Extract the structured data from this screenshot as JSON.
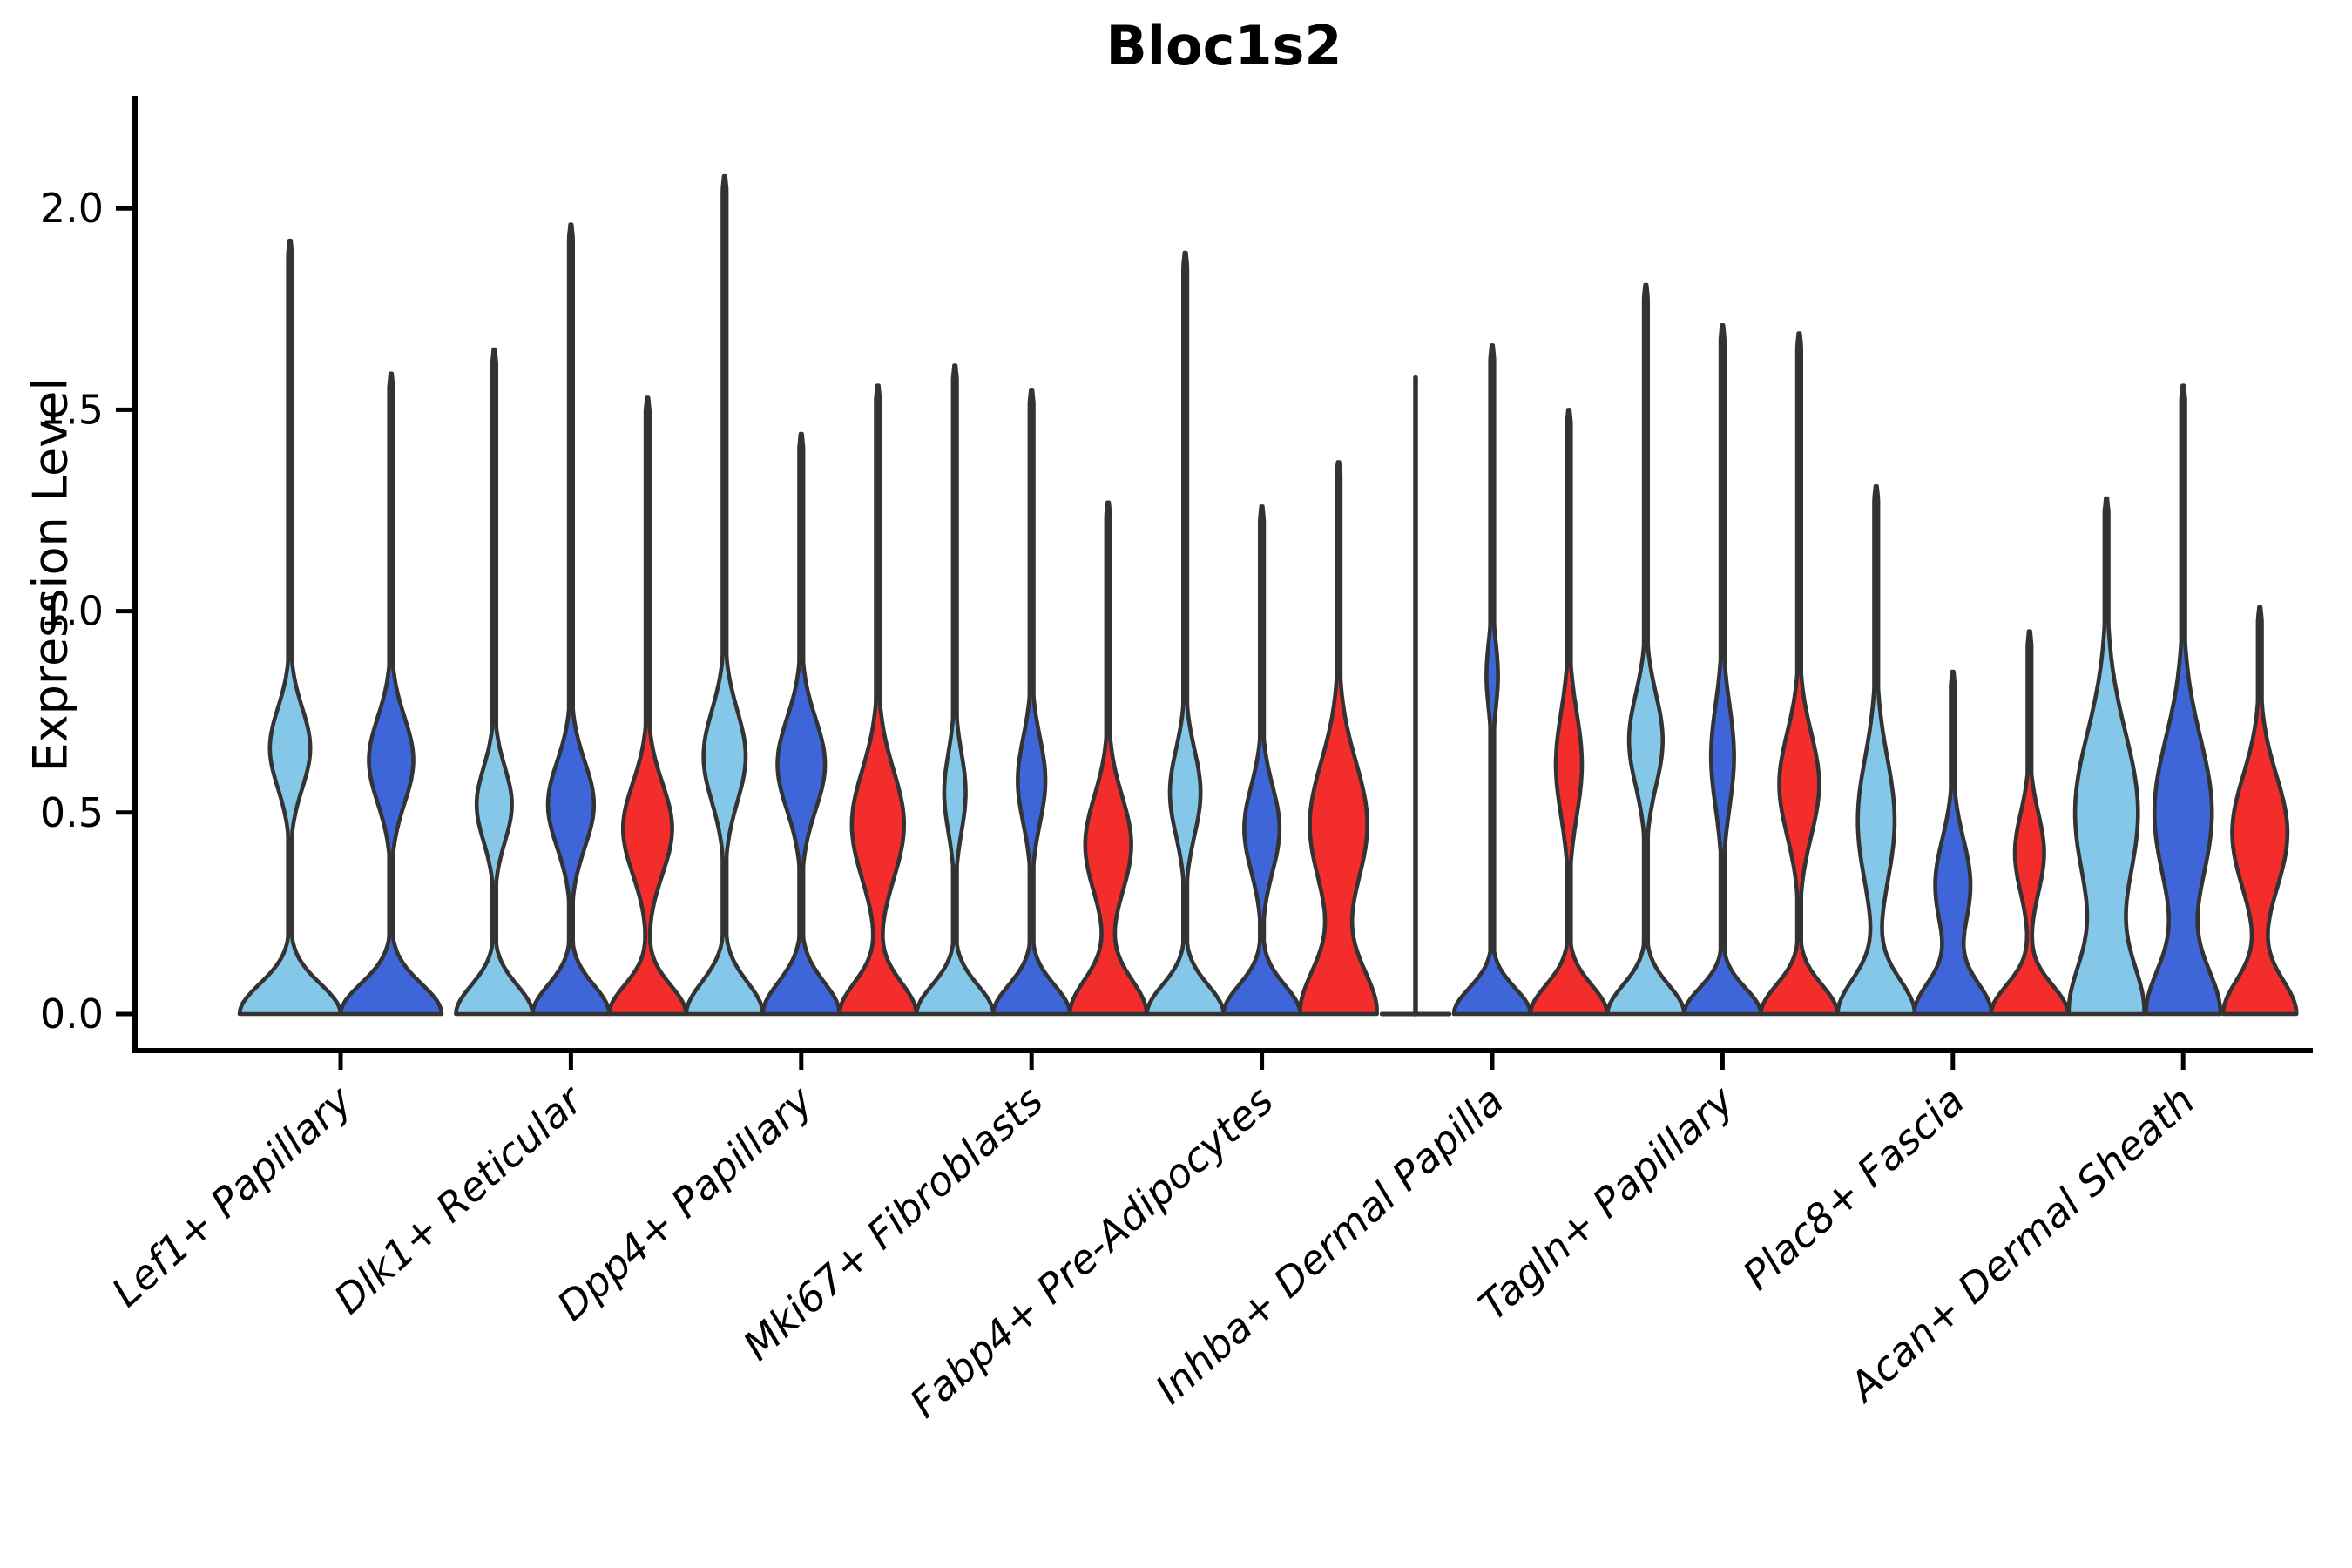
{
  "chart_data": {
    "type": "violin",
    "title": "Bloc1s2",
    "ylabel": "Expression Level",
    "ylim": [
      0,
      2.17
    ],
    "yticks": [
      "0.0",
      "0.5",
      "1.0",
      "1.5",
      "2.0"
    ],
    "ytick_values": [
      0,
      0.5,
      1.0,
      1.5,
      2.0
    ],
    "grid": false,
    "legend": "none",
    "outline_color": "#333333",
    "axis_color": "#000000",
    "categories": [
      "Lef1+ Papillary",
      "Dlk1+ Reticular",
      "Dpp4+ Papillary",
      "Mki67+ Fibroblasts",
      "Fabp4+ Pre-Adipocytes",
      "Inhba+ Dermal Papilla",
      "Tagln+ Papillary",
      "Plac8+ Fascia",
      "Acan+ Dermal Sheath"
    ],
    "series": [
      {
        "name": "condition-1-lightblue",
        "color": "#84C7E8"
      },
      {
        "name": "condition-2-darkblue",
        "color": "#3E66D9"
      },
      {
        "name": "condition-3-red",
        "color": "#F32C2C"
      }
    ],
    "violins": [
      {
        "category": "Lef1+ Papillary",
        "cells": [
          {
            "max": 1.92,
            "peak": 0.66,
            "peak_width": 0.4,
            "peak_spread": 0.14,
            "base_width": 1.0,
            "base_spread": 0.105,
            "shape": "normal"
          },
          {
            "max": 1.59,
            "peak": 0.63,
            "peak_width": 0.44,
            "peak_spread": 0.15,
            "base_width": 1.0,
            "base_spread": 0.105,
            "shape": "normal"
          },
          null
        ]
      },
      {
        "category": "Dlk1+ Reticular",
        "cells": [
          {
            "max": 1.65,
            "peak": 0.52,
            "peak_width": 0.46,
            "peak_spread": 0.13,
            "base_width": 1.0,
            "base_spread": 0.1,
            "shape": "normal"
          },
          {
            "max": 1.96,
            "peak": 0.52,
            "peak_width": 0.6,
            "peak_spread": 0.15,
            "base_width": 1.0,
            "base_spread": 0.1,
            "shape": "normal"
          },
          {
            "max": 1.53,
            "peak": 0.46,
            "peak_width": 0.64,
            "peak_spread": 0.16,
            "base_width": 1.0,
            "base_spread": 0.1,
            "shape": "normal"
          }
        ]
      },
      {
        "category": "Dpp4+ Papillary",
        "cells": [
          {
            "max": 2.08,
            "peak": 0.64,
            "peak_width": 0.55,
            "peak_spread": 0.16,
            "base_width": 1.0,
            "base_spread": 0.11,
            "shape": "normal"
          },
          {
            "max": 1.44,
            "peak": 0.62,
            "peak_width": 0.62,
            "peak_spread": 0.16,
            "base_width": 1.0,
            "base_spread": 0.11,
            "shape": "normal"
          },
          {
            "max": 1.56,
            "peak": 0.47,
            "peak_width": 0.68,
            "peak_spread": 0.19,
            "base_width": 1.0,
            "base_spread": 0.11,
            "shape": "normal"
          }
        ]
      },
      {
        "category": "Mki67+ Fibroblasts",
        "cells": [
          {
            "max": 1.61,
            "peak": 0.55,
            "peak_width": 0.28,
            "peak_spread": 0.14,
            "base_width": 1.0,
            "base_spread": 0.1,
            "shape": "normal"
          },
          {
            "max": 1.55,
            "peak": 0.58,
            "peak_width": 0.36,
            "peak_spread": 0.15,
            "base_width": 1.0,
            "base_spread": 0.1,
            "shape": "normal"
          },
          {
            "max": 1.27,
            "peak": 0.42,
            "peak_width": 0.6,
            "peak_spread": 0.17,
            "base_width": 1.0,
            "base_spread": 0.12,
            "shape": "normal"
          }
        ]
      },
      {
        "category": "Fabp4+ Pre-Adipocytes",
        "cells": [
          {
            "max": 1.89,
            "peak": 0.55,
            "peak_width": 0.4,
            "peak_spread": 0.15,
            "base_width": 1.0,
            "base_spread": 0.1,
            "shape": "normal"
          },
          {
            "max": 1.26,
            "peak": 0.46,
            "peak_width": 0.46,
            "peak_spread": 0.15,
            "base_width": 1.0,
            "base_spread": 0.1,
            "shape": "normal"
          },
          {
            "max": 1.37,
            "peak": 0.47,
            "peak_width": 0.75,
            "peak_spread": 0.22,
            "base_width": 1.0,
            "base_spread": 0.16,
            "shape": "normal"
          }
        ]
      },
      {
        "category": "Inhba+ Dermal Papilla",
        "cells": [
          {
            "max": 1.58,
            "peak": 0,
            "peak_width": 0,
            "peak_spread": 0.1,
            "base_width": 0.88,
            "base_spread": 0.1,
            "shape": "flat"
          },
          {
            "max": 1.66,
            "peak": 0.84,
            "peak_width": 0.15,
            "peak_spread": 0.12,
            "base_width": 1.0,
            "base_spread": 0.09,
            "shape": "normal"
          },
          {
            "max": 1.5,
            "peak": 0.62,
            "peak_width": 0.34,
            "peak_spread": 0.18,
            "base_width": 1.0,
            "base_spread": 0.1,
            "shape": "normal"
          }
        ]
      },
      {
        "category": "Tagln+ Papillary",
        "cells": [
          {
            "max": 1.81,
            "peak": 0.68,
            "peak_width": 0.44,
            "peak_spread": 0.16,
            "base_width": 1.0,
            "base_spread": 0.1,
            "shape": "normal"
          },
          {
            "max": 1.71,
            "peak": 0.64,
            "peak_width": 0.3,
            "peak_spread": 0.18,
            "base_width": 1.0,
            "base_spread": 0.09,
            "shape": "normal"
          },
          {
            "max": 1.69,
            "peak": 0.57,
            "peak_width": 0.52,
            "peak_spread": 0.18,
            "base_width": 1.0,
            "base_spread": 0.1,
            "shape": "normal"
          }
        ]
      },
      {
        "category": "Plac8+ Fascia",
        "cells": [
          {
            "max": 1.31,
            "peak": 0.48,
            "peak_width": 0.48,
            "peak_spread": 0.22,
            "base_width": 1.0,
            "base_spread": 0.12,
            "shape": "normal"
          },
          {
            "max": 0.85,
            "peak": 0.32,
            "peak_width": 0.46,
            "peak_spread": 0.16,
            "base_width": 1.0,
            "base_spread": 0.11,
            "shape": "normal"
          },
          {
            "max": 0.95,
            "peak": 0.4,
            "peak_width": 0.38,
            "peak_spread": 0.14,
            "base_width": 1.0,
            "base_spread": 0.1,
            "shape": "normal"
          }
        ]
      },
      {
        "category": "Acan+ Dermal Sheath",
        "cells": [
          {
            "max": 1.28,
            "peak": 0.5,
            "peak_width": 0.82,
            "peak_spread": 0.28,
            "base_width": 0.95,
            "base_spread": 0.18,
            "shape": "normal"
          },
          {
            "max": 1.56,
            "peak": 0.5,
            "peak_width": 0.75,
            "peak_spread": 0.26,
            "base_width": 0.95,
            "base_spread": 0.16,
            "shape": "normal"
          },
          {
            "max": 1.01,
            "peak": 0.45,
            "peak_width": 0.72,
            "peak_spread": 0.2,
            "base_width": 0.95,
            "base_spread": 0.12,
            "shape": "normal"
          }
        ]
      }
    ]
  }
}
